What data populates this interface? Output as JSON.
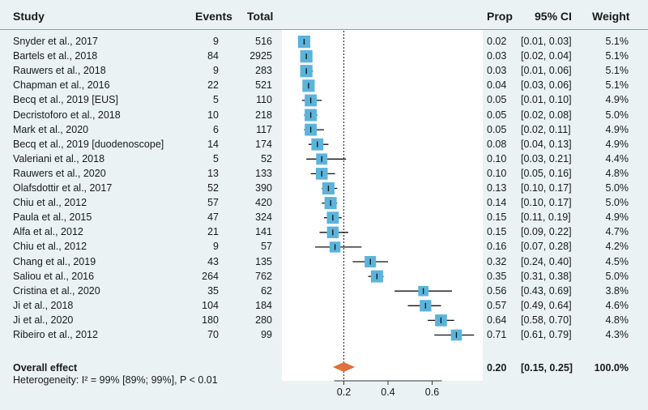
{
  "headers": {
    "study": "Study",
    "events": "Events",
    "total": "Total",
    "prop": "Prop",
    "ci": "95% CI",
    "weight": "Weight"
  },
  "rows": [
    {
      "study": "Snyder et al., 2017",
      "events": "9",
      "total": "516",
      "prop": "0.02",
      "ci": "[0.01, 0.03]",
      "weight": "5.1%"
    },
    {
      "study": "Bartels et al., 2018",
      "events": "84",
      "total": "2925",
      "prop": "0.03",
      "ci": "[0.02, 0.04]",
      "weight": "5.1%"
    },
    {
      "study": "Rauwers et al., 2018",
      "events": "9",
      "total": "283",
      "prop": "0.03",
      "ci": "[0.01, 0.06]",
      "weight": "5.1%"
    },
    {
      "study": "Chapman et al., 2016",
      "events": "22",
      "total": "521",
      "prop": "0.04",
      "ci": "[0.03, 0.06]",
      "weight": "5.1%"
    },
    {
      "study": "Becq et al., 2019 [EUS]",
      "events": "5",
      "total": "110",
      "prop": "0.05",
      "ci": "[0.01, 0.10]",
      "weight": "4.9%"
    },
    {
      "study": "Decristoforo et al., 2018",
      "events": "10",
      "total": "218",
      "prop": "0.05",
      "ci": "[0.02, 0.08]",
      "weight": "5.0%"
    },
    {
      "study": "Mark et al., 2020",
      "events": "6",
      "total": "117",
      "prop": "0.05",
      "ci": "[0.02, 0.11]",
      "weight": "4.9%"
    },
    {
      "study": "Becq et al., 2019 [duodenoscope]",
      "events": "14",
      "total": "174",
      "prop": "0.08",
      "ci": "[0.04, 0.13]",
      "weight": "4.9%"
    },
    {
      "study": "Valeriani et al., 2018",
      "events": "5",
      "total": "52",
      "prop": "0.10",
      "ci": "[0.03, 0.21]",
      "weight": "4.4%"
    },
    {
      "study": "Rauwers et al., 2020",
      "events": "13",
      "total": "133",
      "prop": "0.10",
      "ci": "[0.05, 0.16]",
      "weight": "4.8%"
    },
    {
      "study": "Olafsdottir et al., 2017",
      "events": "52",
      "total": "390",
      "prop": "0.13",
      "ci": "[0.10, 0.17]",
      "weight": "5.0%"
    },
    {
      "study": "Chiu et al., 2012",
      "events": "57",
      "total": "420",
      "prop": "0.14",
      "ci": "[0.10, 0.17]",
      "weight": "5.0%"
    },
    {
      "study": "Paula et al., 2015",
      "events": "47",
      "total": "324",
      "prop": "0.15",
      "ci": "[0.11, 0.19]",
      "weight": "4.9%"
    },
    {
      "study": "Alfa et al., 2012",
      "events": "21",
      "total": "141",
      "prop": "0.15",
      "ci": "[0.09, 0.22]",
      "weight": "4.7%"
    },
    {
      "study": "Chiu et al., 2012",
      "events": "9",
      "total": "57",
      "prop": "0.16",
      "ci": "[0.07, 0.28]",
      "weight": "4.2%"
    },
    {
      "study": "Chang et al., 2019",
      "events": "43",
      "total": "135",
      "prop": "0.32",
      "ci": "[0.24, 0.40]",
      "weight": "4.5%"
    },
    {
      "study": "Saliou et al., 2016",
      "events": "264",
      "total": "762",
      "prop": "0.35",
      "ci": "[0.31, 0.38]",
      "weight": "5.0%"
    },
    {
      "study": "Cristina et al., 2020",
      "events": "35",
      "total": "62",
      "prop": "0.56",
      "ci": "[0.43, 0.69]",
      "weight": "3.8%"
    },
    {
      "study": "Ji et al., 2018",
      "events": "104",
      "total": "184",
      "prop": "0.57",
      "ci": "[0.49, 0.64]",
      "weight": "4.6%"
    },
    {
      "study": "Ji et al., 2020",
      "events": "180",
      "total": "280",
      "prop": "0.64",
      "ci": "[0.58, 0.70]",
      "weight": "4.8%"
    },
    {
      "study": "Ribeiro et al., 2012",
      "events": "70",
      "total": "99",
      "prop": "0.71",
      "ci": "[0.61, 0.79]",
      "weight": "4.3%"
    }
  ],
  "overall": {
    "label": "Overall effect",
    "prop": "0.20",
    "ci": "[0.15, 0.25]",
    "weight": "100.0%"
  },
  "heterogeneity": "Heterogeneity: I² = 99% [89%; 99%], P < 0.01",
  "chart_data": {
    "type": "forest",
    "axis_ticks": [
      0.2,
      0.4,
      0.6
    ],
    "reference_line": 0.2,
    "xlim": [
      -0.1,
      0.8
    ],
    "studies": [
      {
        "est": 0.02,
        "lo": 0.01,
        "hi": 0.03,
        "w": 5.1
      },
      {
        "est": 0.03,
        "lo": 0.02,
        "hi": 0.04,
        "w": 5.1
      },
      {
        "est": 0.03,
        "lo": 0.01,
        "hi": 0.06,
        "w": 5.1
      },
      {
        "est": 0.04,
        "lo": 0.03,
        "hi": 0.06,
        "w": 5.1
      },
      {
        "est": 0.05,
        "lo": 0.01,
        "hi": 0.1,
        "w": 4.9
      },
      {
        "est": 0.05,
        "lo": 0.02,
        "hi": 0.08,
        "w": 5.0
      },
      {
        "est": 0.05,
        "lo": 0.02,
        "hi": 0.11,
        "w": 4.9
      },
      {
        "est": 0.08,
        "lo": 0.04,
        "hi": 0.13,
        "w": 4.9
      },
      {
        "est": 0.1,
        "lo": 0.03,
        "hi": 0.21,
        "w": 4.4
      },
      {
        "est": 0.1,
        "lo": 0.05,
        "hi": 0.16,
        "w": 4.8
      },
      {
        "est": 0.13,
        "lo": 0.1,
        "hi": 0.17,
        "w": 5.0
      },
      {
        "est": 0.14,
        "lo": 0.1,
        "hi": 0.17,
        "w": 5.0
      },
      {
        "est": 0.15,
        "lo": 0.11,
        "hi": 0.19,
        "w": 4.9
      },
      {
        "est": 0.15,
        "lo": 0.09,
        "hi": 0.22,
        "w": 4.7
      },
      {
        "est": 0.16,
        "lo": 0.07,
        "hi": 0.28,
        "w": 4.2
      },
      {
        "est": 0.32,
        "lo": 0.24,
        "hi": 0.4,
        "w": 4.5
      },
      {
        "est": 0.35,
        "lo": 0.31,
        "hi": 0.38,
        "w": 5.0
      },
      {
        "est": 0.56,
        "lo": 0.43,
        "hi": 0.69,
        "w": 3.8
      },
      {
        "est": 0.57,
        "lo": 0.49,
        "hi": 0.64,
        "w": 4.6
      },
      {
        "est": 0.64,
        "lo": 0.58,
        "hi": 0.7,
        "w": 4.8
      },
      {
        "est": 0.71,
        "lo": 0.61,
        "hi": 0.79,
        "w": 4.3
      }
    ],
    "overall": {
      "est": 0.2,
      "lo": 0.15,
      "hi": 0.25
    },
    "colors": {
      "box": "#5ab4dc",
      "diamond": "#e0703c",
      "line": "#111111"
    }
  }
}
